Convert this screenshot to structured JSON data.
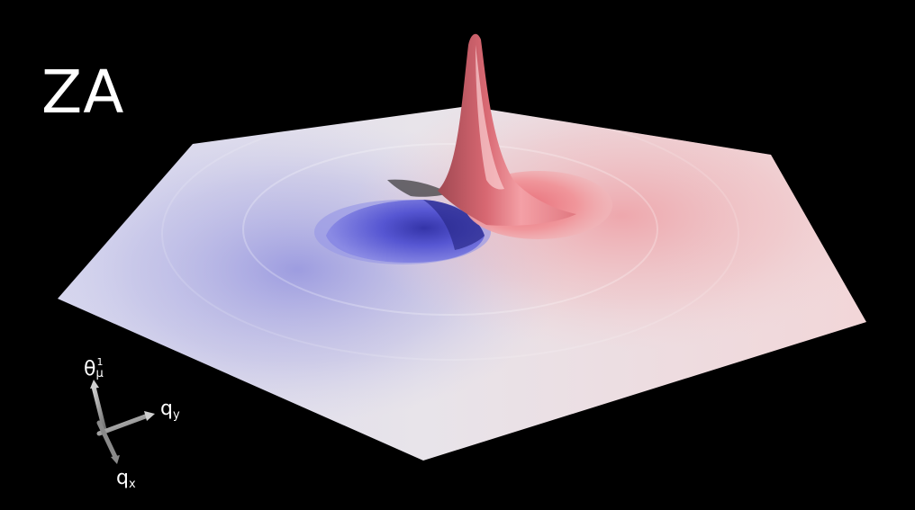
{
  "title": "ZA",
  "axes": {
    "theta_main": "θ",
    "theta_sup": "1",
    "theta_sub": "μ",
    "qy_main": "q",
    "qy_sub": "y",
    "qx_main": "q",
    "qx_sub": "x"
  },
  "colors": {
    "background": "#000000",
    "positive": "#f07a80",
    "negative": "#6a6ae0",
    "neutral": "#e6e2e4",
    "text": "#ffffff"
  }
}
